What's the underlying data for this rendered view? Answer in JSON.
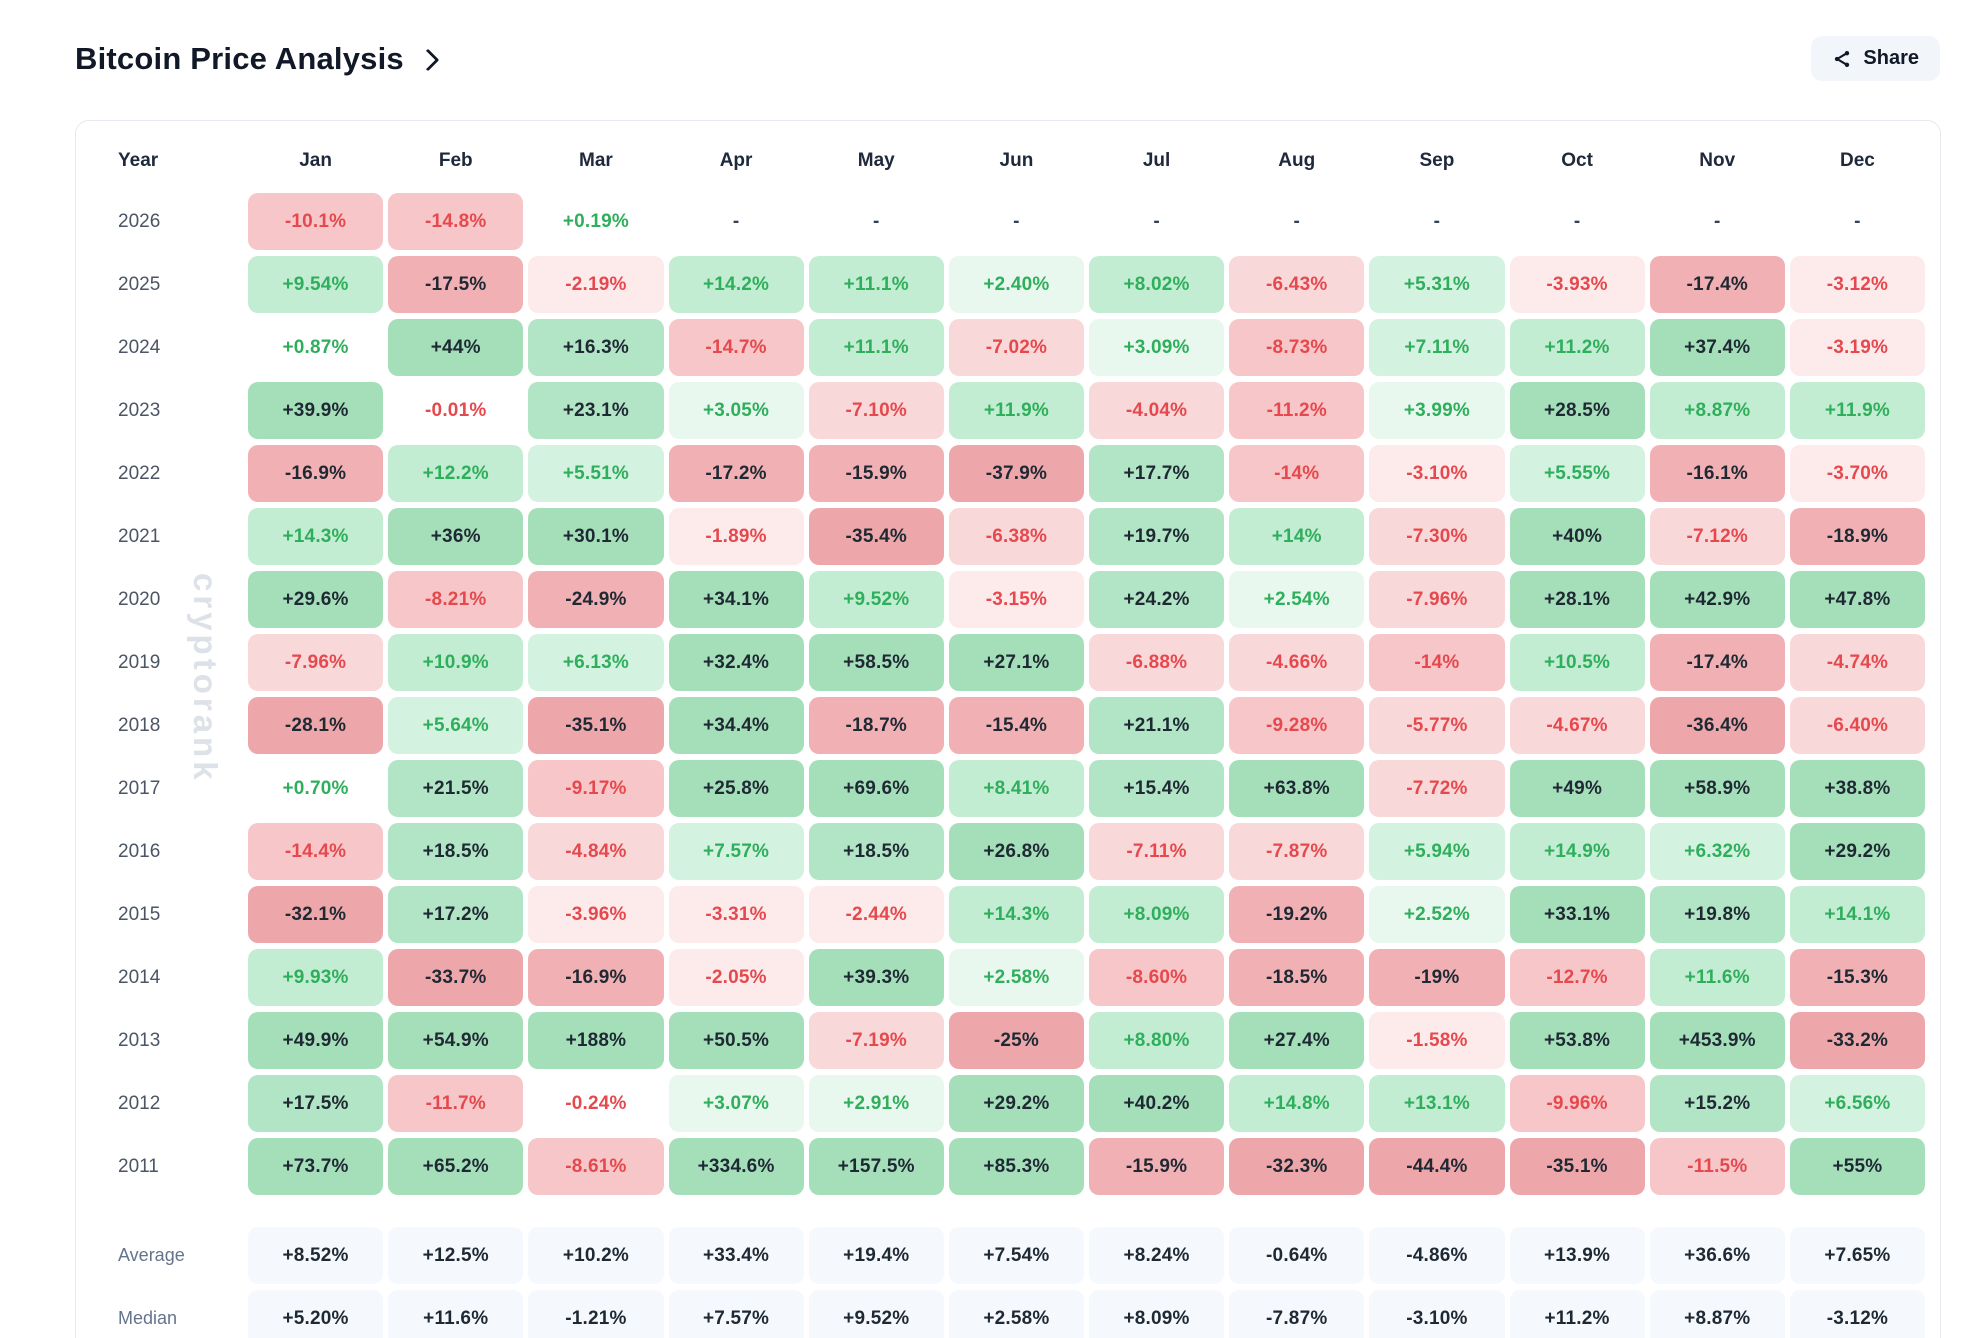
{
  "page": {
    "title": "Bitcoin Price Analysis",
    "share_label": "Share",
    "watermark": "cryptorank"
  },
  "colors": {
    "green_text": "#2fae5c",
    "red_text": "#e5494d",
    "dark_text": "#1f2933",
    "dash_text": "#334155",
    "green_bg_tiers": [
      "#e8f8ee",
      "#d4f2e0",
      "#c3edd3",
      "#b1e5c5",
      "#a4dfba"
    ],
    "red_bg_tiers": [
      "#fdebec",
      "#f9d8da",
      "#f6c6c9",
      "#f1b0b3",
      "#eda7aa"
    ],
    "summary_bg": "#f5f8fc"
  },
  "table": {
    "columns": [
      "Year",
      "Jan",
      "Feb",
      "Mar",
      "Apr",
      "May",
      "Jun",
      "Jul",
      "Aug",
      "Sep",
      "Oct",
      "Nov",
      "Dec"
    ],
    "rows": [
      {
        "year": "2026",
        "cells": [
          "-10.1%",
          "-14.8%",
          "+0.19%",
          "-",
          "-",
          "-",
          "-",
          "-",
          "-",
          "-",
          "-",
          "-"
        ]
      },
      {
        "year": "2025",
        "cells": [
          "+9.54%",
          "-17.5%",
          "-2.19%",
          "+14.2%",
          "+11.1%",
          "+2.40%",
          "+8.02%",
          "-6.43%",
          "+5.31%",
          "-3.93%",
          "-17.4%",
          "-3.12%"
        ]
      },
      {
        "year": "2024",
        "cells": [
          "+0.87%",
          "+44%",
          "+16.3%",
          "-14.7%",
          "+11.1%",
          "-7.02%",
          "+3.09%",
          "-8.73%",
          "+7.11%",
          "+11.2%",
          "+37.4%",
          "-3.19%"
        ]
      },
      {
        "year": "2023",
        "cells": [
          "+39.9%",
          "-0.01%",
          "+23.1%",
          "+3.05%",
          "-7.10%",
          "+11.9%",
          "-4.04%",
          "-11.2%",
          "+3.99%",
          "+28.5%",
          "+8.87%",
          "+11.9%"
        ]
      },
      {
        "year": "2022",
        "cells": [
          "-16.9%",
          "+12.2%",
          "+5.51%",
          "-17.2%",
          "-15.9%",
          "-37.9%",
          "+17.7%",
          "-14%",
          "-3.10%",
          "+5.55%",
          "-16.1%",
          "-3.70%"
        ]
      },
      {
        "year": "2021",
        "cells": [
          "+14.3%",
          "+36%",
          "+30.1%",
          "-1.89%",
          "-35.4%",
          "-6.38%",
          "+19.7%",
          "+14%",
          "-7.30%",
          "+40%",
          "-7.12%",
          "-18.9%"
        ]
      },
      {
        "year": "2020",
        "cells": [
          "+29.6%",
          "-8.21%",
          "-24.9%",
          "+34.1%",
          "+9.52%",
          "-3.15%",
          "+24.2%",
          "+2.54%",
          "-7.96%",
          "+28.1%",
          "+42.9%",
          "+47.8%"
        ]
      },
      {
        "year": "2019",
        "cells": [
          "-7.96%",
          "+10.9%",
          "+6.13%",
          "+32.4%",
          "+58.5%",
          "+27.1%",
          "-6.88%",
          "-4.66%",
          "-14%",
          "+10.5%",
          "-17.4%",
          "-4.74%"
        ]
      },
      {
        "year": "2018",
        "cells": [
          "-28.1%",
          "+5.64%",
          "-35.1%",
          "+34.4%",
          "-18.7%",
          "-15.4%",
          "+21.1%",
          "-9.28%",
          "-5.77%",
          "-4.67%",
          "-36.4%",
          "-6.40%"
        ]
      },
      {
        "year": "2017",
        "cells": [
          "+0.70%",
          "+21.5%",
          "-9.17%",
          "+25.8%",
          "+69.6%",
          "+8.41%",
          "+15.4%",
          "+63.8%",
          "-7.72%",
          "+49%",
          "+58.9%",
          "+38.8%"
        ]
      },
      {
        "year": "2016",
        "cells": [
          "-14.4%",
          "+18.5%",
          "-4.84%",
          "+7.57%",
          "+18.5%",
          "+26.8%",
          "-7.11%",
          "-7.87%",
          "+5.94%",
          "+14.9%",
          "+6.32%",
          "+29.2%"
        ]
      },
      {
        "year": "2015",
        "cells": [
          "-32.1%",
          "+17.2%",
          "-3.96%",
          "-3.31%",
          "-2.44%",
          "+14.3%",
          "+8.09%",
          "-19.2%",
          "+2.52%",
          "+33.1%",
          "+19.8%",
          "+14.1%"
        ]
      },
      {
        "year": "2014",
        "cells": [
          "+9.93%",
          "-33.7%",
          "-16.9%",
          "-2.05%",
          "+39.3%",
          "+2.58%",
          "-8.60%",
          "-18.5%",
          "-19%",
          "-12.7%",
          "+11.6%",
          "-15.3%"
        ]
      },
      {
        "year": "2013",
        "cells": [
          "+49.9%",
          "+54.9%",
          "+188%",
          "+50.5%",
          "-7.19%",
          "-25%",
          "+8.80%",
          "+27.4%",
          "-1.58%",
          "+53.8%",
          "+453.9%",
          "-33.2%"
        ]
      },
      {
        "year": "2012",
        "cells": [
          "+17.5%",
          "-11.7%",
          "-0.24%",
          "+3.07%",
          "+2.91%",
          "+29.2%",
          "+40.2%",
          "+14.8%",
          "+13.1%",
          "-9.96%",
          "+15.2%",
          "+6.56%"
        ]
      },
      {
        "year": "2011",
        "cells": [
          "+73.7%",
          "+65.2%",
          "-8.61%",
          "+334.6%",
          "+157.5%",
          "+85.3%",
          "-15.9%",
          "-32.3%",
          "-44.4%",
          "-35.1%",
          "-11.5%",
          "+55%"
        ]
      }
    ],
    "summary": [
      {
        "label": "Average",
        "cells": [
          "+8.52%",
          "+12.5%",
          "+10.2%",
          "+33.4%",
          "+19.4%",
          "+7.54%",
          "+8.24%",
          "-0.64%",
          "-4.86%",
          "+13.9%",
          "+36.6%",
          "+7.65%"
        ]
      },
      {
        "label": "Median",
        "cells": [
          "+5.20%",
          "+11.6%",
          "-1.21%",
          "+7.57%",
          "+9.52%",
          "+2.58%",
          "+8.09%",
          "-7.87%",
          "-3.10%",
          "+11.2%",
          "+8.87%",
          "-3.12%"
        ]
      }
    ]
  }
}
